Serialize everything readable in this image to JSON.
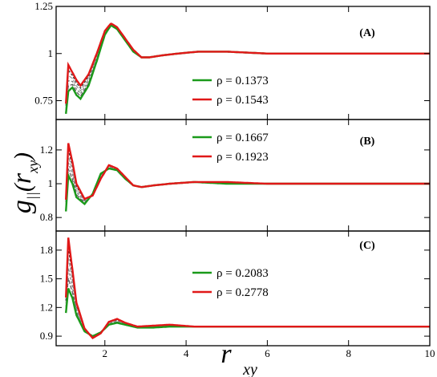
{
  "figure": {
    "ylabel_main": "g",
    "ylabel_sub": "||",
    "ylabel_arg": "r",
    "ylabel_arg_sub": "xy",
    "xlabel_main": "r",
    "xlabel_sub": "xy",
    "xticks": [
      "2",
      "4",
      "6",
      "8",
      "10"
    ],
    "colors": {
      "green": "#1a9a1a",
      "red": "#e01818",
      "black": "#000000"
    }
  },
  "chart_data": [
    {
      "type": "line",
      "panel_label": "(A)",
      "xlim": [
        0.8,
        10
      ],
      "ylim": [
        0.65,
        1.25
      ],
      "yticks": [
        0.75,
        1,
        1.25
      ],
      "ytick_labels": [
        "0.75",
        "1",
        "1.25"
      ],
      "series": [
        {
          "name": "ρ = 0.1373",
          "color": "#1a9a1a",
          "x": [
            1.03,
            1.1,
            1.2,
            1.3,
            1.4,
            1.6,
            1.8,
            2.0,
            2.15,
            2.3,
            2.5,
            2.7,
            2.9,
            3.1,
            3.4,
            3.8,
            4.3,
            5,
            6,
            7,
            8,
            9,
            10
          ],
          "y": [
            0.66,
            0.8,
            0.82,
            0.78,
            0.76,
            0.83,
            0.96,
            1.1,
            1.15,
            1.13,
            1.07,
            1.01,
            0.98,
            0.98,
            0.99,
            1.0,
            1.01,
            1.01,
            1.0,
            1.0,
            1.0,
            1.0,
            1.0
          ]
        },
        {
          "name": "ρ = 0.1543",
          "color": "#e01818",
          "x": [
            1.03,
            1.1,
            1.2,
            1.3,
            1.4,
            1.6,
            1.8,
            2.0,
            2.15,
            2.3,
            2.5,
            2.7,
            2.9,
            3.1,
            3.4,
            3.8,
            4.3,
            5,
            6,
            7,
            8,
            9,
            10
          ],
          "y": [
            0.7,
            0.94,
            0.9,
            0.86,
            0.83,
            0.89,
            1.0,
            1.12,
            1.16,
            1.14,
            1.08,
            1.02,
            0.98,
            0.98,
            0.99,
            1.0,
            1.01,
            1.01,
            1.0,
            1.0,
            1.0,
            1.0,
            1.0
          ]
        }
      ]
    },
    {
      "type": "line",
      "panel_label": "(B)",
      "xlim": [
        0.8,
        10
      ],
      "ylim": [
        0.72,
        1.38
      ],
      "yticks": [
        0.8,
        1,
        1.2
      ],
      "ytick_labels": [
        "0.8",
        "1",
        "1.2"
      ],
      "series": [
        {
          "name": "ρ = 0.1667",
          "color": "#1a9a1a",
          "x": [
            1.03,
            1.1,
            1.2,
            1.3,
            1.5,
            1.7,
            1.9,
            2.1,
            2.3,
            2.5,
            2.7,
            2.9,
            3.2,
            3.6,
            4.2,
            5,
            6,
            7,
            8,
            9,
            10
          ],
          "y": [
            0.8,
            1.05,
            1.0,
            0.92,
            0.88,
            0.94,
            1.06,
            1.09,
            1.08,
            1.03,
            0.99,
            0.98,
            0.99,
            1.0,
            1.01,
            1.0,
            1.0,
            1.0,
            1.0,
            1.0,
            1.0
          ]
        },
        {
          "name": "ρ = 0.1923",
          "color": "#e01818",
          "x": [
            1.03,
            1.1,
            1.2,
            1.3,
            1.5,
            1.7,
            1.9,
            2.1,
            2.3,
            2.5,
            2.7,
            2.9,
            3.2,
            3.6,
            4.2,
            5,
            6,
            7,
            8,
            9,
            10
          ],
          "y": [
            0.85,
            1.24,
            1.13,
            1.0,
            0.91,
            0.93,
            1.03,
            1.11,
            1.09,
            1.04,
            0.99,
            0.98,
            0.99,
            1.0,
            1.01,
            1.01,
            1.0,
            1.0,
            1.0,
            1.0,
            1.0
          ]
        }
      ]
    },
    {
      "type": "line",
      "panel_label": "(C)",
      "xlim": [
        0.8,
        10
      ],
      "ylim": [
        0.8,
        2.0
      ],
      "yticks": [
        0.9,
        1.2,
        1.5,
        1.8
      ],
      "ytick_labels": [
        "0.9",
        "1.2",
        "1.5",
        "1.8"
      ],
      "series": [
        {
          "name": "ρ = 0.2083",
          "color": "#1a9a1a",
          "x": [
            1.03,
            1.1,
            1.2,
            1.3,
            1.5,
            1.7,
            1.9,
            2.1,
            2.3,
            2.5,
            2.8,
            3.2,
            3.6,
            4.2,
            5,
            6,
            7,
            8,
            9,
            10
          ],
          "y": [
            1.1,
            1.4,
            1.3,
            1.12,
            0.95,
            0.9,
            0.94,
            1.02,
            1.04,
            1.02,
            0.99,
            0.99,
            1.0,
            1.0,
            1.0,
            1.0,
            1.0,
            1.0,
            1.0,
            1.0
          ]
        },
        {
          "name": "ρ = 0.2778",
          "color": "#e01818",
          "x": [
            1.03,
            1.1,
            1.2,
            1.3,
            1.5,
            1.7,
            1.9,
            2.1,
            2.3,
            2.5,
            2.8,
            3.2,
            3.6,
            4.2,
            5,
            6,
            7,
            8,
            9,
            10
          ],
          "y": [
            1.2,
            1.93,
            1.6,
            1.25,
            0.98,
            0.88,
            0.93,
            1.05,
            1.08,
            1.04,
            1.0,
            1.01,
            1.02,
            1.0,
            1.0,
            1.0,
            1.0,
            1.0,
            1.0,
            1.0
          ]
        }
      ]
    }
  ]
}
